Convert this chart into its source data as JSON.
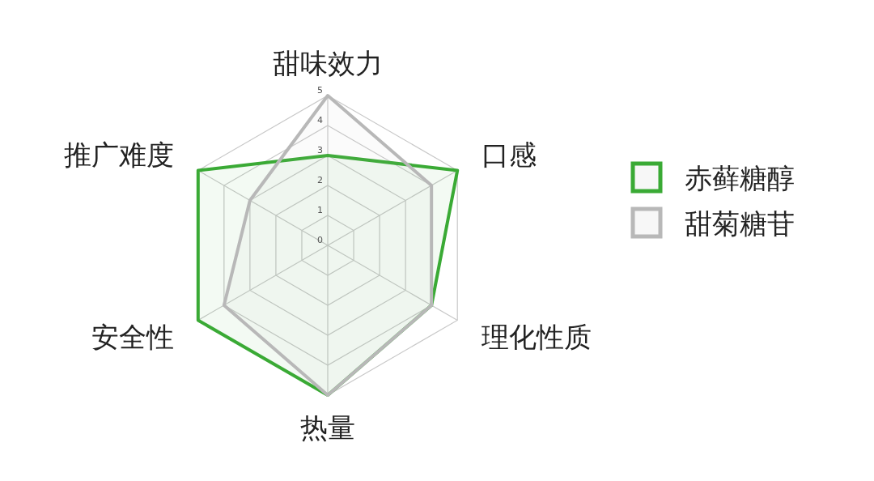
{
  "chart_data": {
    "type": "radar",
    "categories": [
      "甜味效力",
      "口感",
      "理化性质",
      "热量",
      "安全性",
      "推广难度"
    ],
    "series": [
      {
        "name": "赤藓糖醇",
        "color": "#3aaa35",
        "values": [
          3,
          5,
          4,
          5,
          5,
          5
        ]
      },
      {
        "name": "甜菊糖苷",
        "color": "#b8b8b8",
        "values": [
          5,
          4,
          4,
          5,
          4,
          3
        ]
      }
    ],
    "ylim": [
      0,
      5
    ],
    "yticks": [
      0,
      1,
      2,
      3,
      4,
      5
    ],
    "grid": true,
    "legend": "right"
  }
}
